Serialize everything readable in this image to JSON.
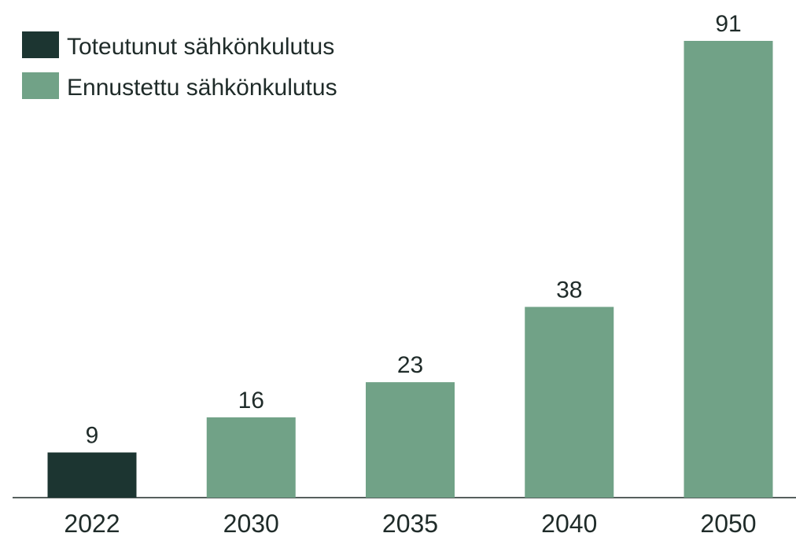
{
  "chart_data": {
    "type": "bar",
    "categories": [
      "2022",
      "2030",
      "2035",
      "2040",
      "2050"
    ],
    "series": [
      {
        "name": "Toteutunut sähkönkulutus",
        "color": "#1c3531",
        "values": [
          9,
          null,
          null,
          null,
          null
        ]
      },
      {
        "name": "Ennustettu sähkönkulutus",
        "color": "#71a287",
        "values": [
          null,
          16,
          23,
          38,
          91
        ]
      }
    ],
    "ylim": [
      0,
      91
    ],
    "legend": "top-left"
  }
}
